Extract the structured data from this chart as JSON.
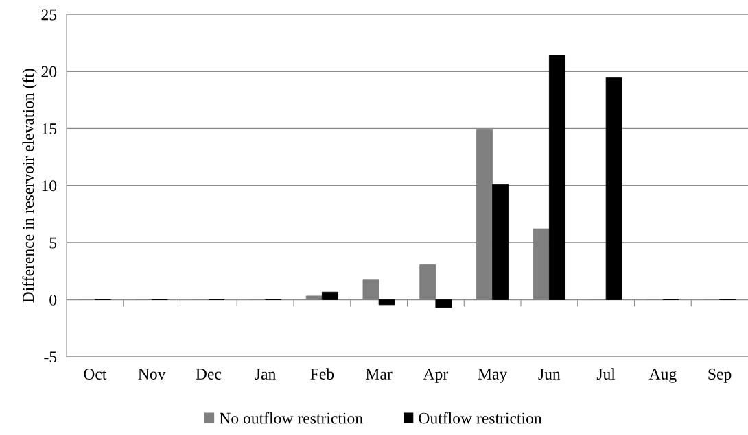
{
  "chart_data": {
    "type": "bar",
    "ylabel": "Difference in reservoir elevation (ft)",
    "categories": [
      "Oct",
      "Nov",
      "Dec",
      "Jan",
      "Feb",
      "Mar",
      "Apr",
      "May",
      "Jun",
      "Jul",
      "Aug",
      "Sep"
    ],
    "series": [
      {
        "name": "No outflow restriction",
        "color": "#808080",
        "values": [
          0,
          0,
          0,
          0,
          0.33,
          1.72,
          3.07,
          14.9,
          6.2,
          0,
          0,
          0
        ]
      },
      {
        "name": "Outflow restriction",
        "color": "#000000",
        "values": [
          0,
          0,
          0,
          0,
          0.67,
          -0.45,
          -0.69,
          10.1,
          21.4,
          19.45,
          0,
          0
        ]
      }
    ],
    "ylim": [
      -5,
      25
    ],
    "yticks": [
      -5,
      0,
      5,
      10,
      15,
      20,
      25
    ],
    "grid": "y",
    "legend": "bottom"
  }
}
